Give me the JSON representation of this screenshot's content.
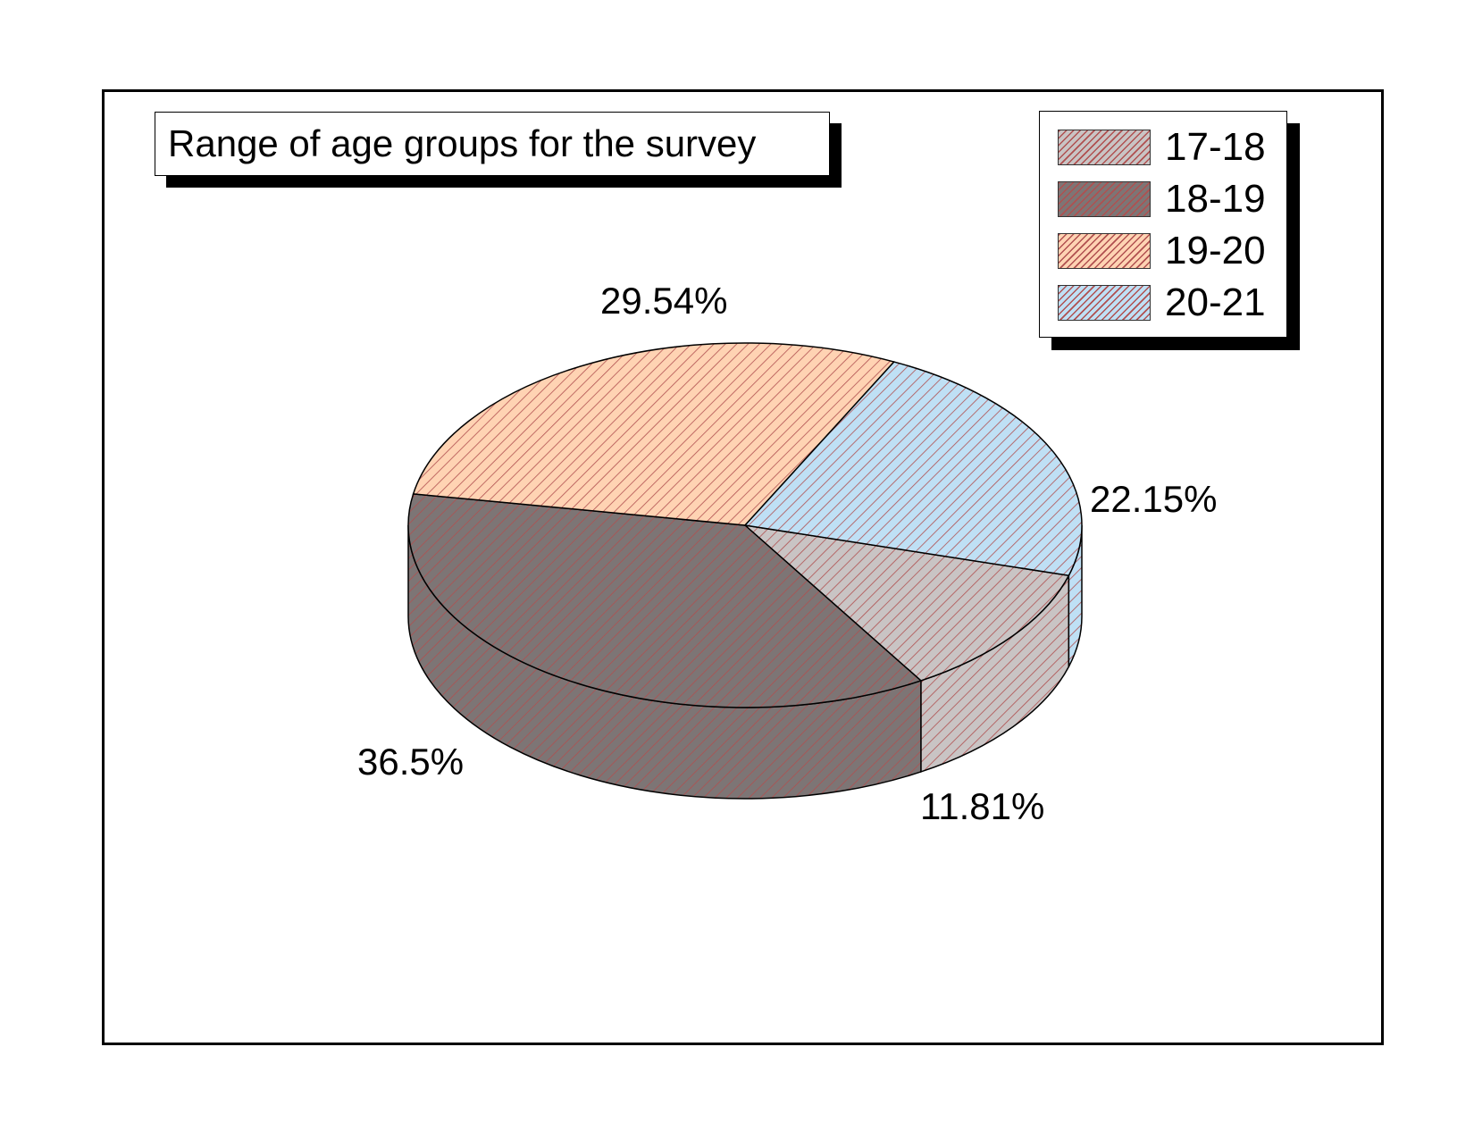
{
  "chart_data": {
    "type": "pie",
    "title": "Range of age groups for the survey",
    "categories": [
      "17-18",
      "18-19",
      "19-20",
      "20-21"
    ],
    "values": [
      11.81,
      36.5,
      29.54,
      22.15
    ],
    "data_labels": [
      "11.81%",
      "36.5%",
      "29.54%",
      "22.15%"
    ],
    "colors": [
      "#c9c4c4",
      "#7d7575",
      "#ffd3b3",
      "#bfe0f5"
    ],
    "hatch_color": "#b05050",
    "legend_position": "top-right",
    "three_d": true
  }
}
